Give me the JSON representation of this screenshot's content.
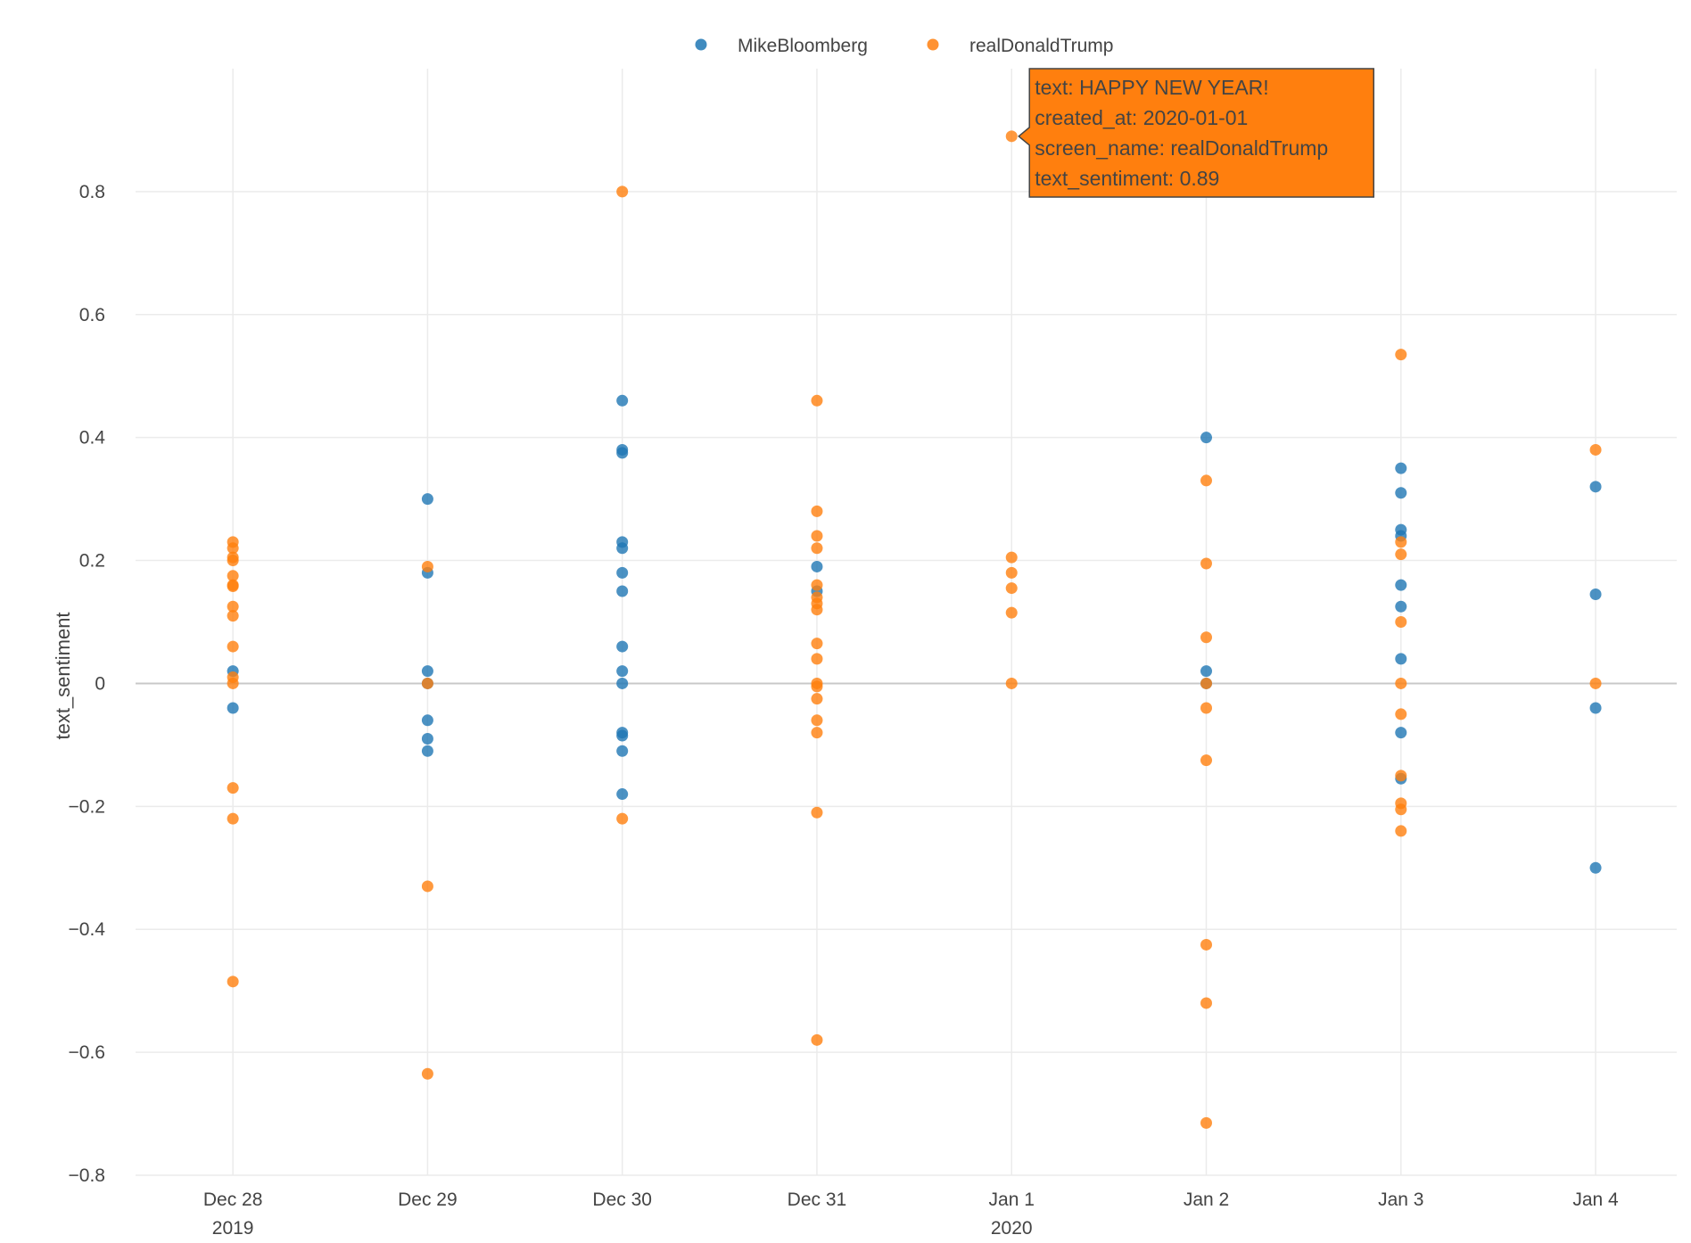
{
  "chart_data": {
    "type": "scatter",
    "ylabel": "text_sentiment",
    "xlabel": "",
    "ylim": [
      -0.8,
      1.0
    ],
    "xlim": [
      "2019-12-27T12:00",
      "2020-01-04T10:00"
    ],
    "y_ticks": [
      -0.8,
      -0.6,
      -0.4,
      -0.2,
      0,
      0.2,
      0.4,
      0.6,
      0.8
    ],
    "y_tick_labels": [
      "−0.8",
      "−0.6",
      "−0.4",
      "−0.2",
      "0",
      "0.2",
      "0.4",
      "0.6",
      "0.8"
    ],
    "x_ticks": [
      {
        "date": "2019-12-28",
        "label": "Dec 28",
        "year": "2019"
      },
      {
        "date": "2019-12-29",
        "label": "Dec 29",
        "year": ""
      },
      {
        "date": "2019-12-30",
        "label": "Dec 30",
        "year": ""
      },
      {
        "date": "2019-12-31",
        "label": "Dec 31",
        "year": ""
      },
      {
        "date": "2020-01-01",
        "label": "Jan 1",
        "year": "2020"
      },
      {
        "date": "2020-01-02",
        "label": "Jan 2",
        "year": ""
      },
      {
        "date": "2020-01-03",
        "label": "Jan 3",
        "year": ""
      },
      {
        "date": "2020-01-04",
        "label": "Jan 4",
        "year": ""
      }
    ],
    "grid": true,
    "legend_position": "top-center",
    "series": [
      {
        "name": "MikeBloomberg",
        "color": "#1f77b4",
        "points": [
          {
            "x": "2019-12-28",
            "y": 0.02
          },
          {
            "x": "2019-12-28",
            "y": -0.04
          },
          {
            "x": "2019-12-29",
            "y": 0.3
          },
          {
            "x": "2019-12-29",
            "y": 0.18
          },
          {
            "x": "2019-12-29",
            "y": 0.02
          },
          {
            "x": "2019-12-29",
            "y": 0.0
          },
          {
            "x": "2019-12-29",
            "y": -0.06
          },
          {
            "x": "2019-12-29",
            "y": -0.09
          },
          {
            "x": "2019-12-29",
            "y": -0.11
          },
          {
            "x": "2019-12-30",
            "y": 0.46
          },
          {
            "x": "2019-12-30",
            "y": 0.38
          },
          {
            "x": "2019-12-30",
            "y": 0.375
          },
          {
            "x": "2019-12-30",
            "y": 0.23
          },
          {
            "x": "2019-12-30",
            "y": 0.22
          },
          {
            "x": "2019-12-30",
            "y": 0.18
          },
          {
            "x": "2019-12-30",
            "y": 0.15
          },
          {
            "x": "2019-12-30",
            "y": 0.06
          },
          {
            "x": "2019-12-30",
            "y": 0.02
          },
          {
            "x": "2019-12-30",
            "y": 0.0
          },
          {
            "x": "2019-12-30",
            "y": -0.08
          },
          {
            "x": "2019-12-30",
            "y": -0.085
          },
          {
            "x": "2019-12-30",
            "y": -0.11
          },
          {
            "x": "2019-12-30",
            "y": -0.18
          },
          {
            "x": "2019-12-31",
            "y": 0.19
          },
          {
            "x": "2019-12-31",
            "y": 0.15
          },
          {
            "x": "2020-01-02",
            "y": 0.4
          },
          {
            "x": "2020-01-02",
            "y": 0.02
          },
          {
            "x": "2020-01-02",
            "y": 0.0
          },
          {
            "x": "2020-01-03",
            "y": 0.35
          },
          {
            "x": "2020-01-03",
            "y": 0.31
          },
          {
            "x": "2020-01-03",
            "y": 0.25
          },
          {
            "x": "2020-01-03",
            "y": 0.24
          },
          {
            "x": "2020-01-03",
            "y": 0.16
          },
          {
            "x": "2020-01-03",
            "y": 0.125
          },
          {
            "x": "2020-01-03",
            "y": 0.04
          },
          {
            "x": "2020-01-03",
            "y": -0.08
          },
          {
            "x": "2020-01-03",
            "y": -0.155
          },
          {
            "x": "2020-01-04",
            "y": 0.32
          },
          {
            "x": "2020-01-04",
            "y": 0.145
          },
          {
            "x": "2020-01-04",
            "y": -0.04
          },
          {
            "x": "2020-01-04",
            "y": -0.3
          }
        ]
      },
      {
        "name": "realDonaldTrump",
        "color": "#ff7f0e",
        "points": [
          {
            "x": "2019-12-28",
            "y": 0.23
          },
          {
            "x": "2019-12-28",
            "y": 0.22
          },
          {
            "x": "2019-12-28",
            "y": 0.205
          },
          {
            "x": "2019-12-28",
            "y": 0.2
          },
          {
            "x": "2019-12-28",
            "y": 0.175
          },
          {
            "x": "2019-12-28",
            "y": 0.16
          },
          {
            "x": "2019-12-28",
            "y": 0.158
          },
          {
            "x": "2019-12-28",
            "y": 0.125
          },
          {
            "x": "2019-12-28",
            "y": 0.11
          },
          {
            "x": "2019-12-28",
            "y": 0.06
          },
          {
            "x": "2019-12-28",
            "y": 0.01
          },
          {
            "x": "2019-12-28",
            "y": 0.0
          },
          {
            "x": "2019-12-28",
            "y": -0.17
          },
          {
            "x": "2019-12-28",
            "y": -0.22
          },
          {
            "x": "2019-12-28",
            "y": -0.485
          },
          {
            "x": "2019-12-29",
            "y": 0.19
          },
          {
            "x": "2019-12-29",
            "y": 0.0
          },
          {
            "x": "2019-12-29",
            "y": -0.33
          },
          {
            "x": "2019-12-29",
            "y": -0.635
          },
          {
            "x": "2019-12-30",
            "y": 0.8
          },
          {
            "x": "2019-12-30",
            "y": -0.22
          },
          {
            "x": "2019-12-31",
            "y": 0.46
          },
          {
            "x": "2019-12-31",
            "y": 0.28
          },
          {
            "x": "2019-12-31",
            "y": 0.24
          },
          {
            "x": "2019-12-31",
            "y": 0.22
          },
          {
            "x": "2019-12-31",
            "y": 0.16
          },
          {
            "x": "2019-12-31",
            "y": 0.14
          },
          {
            "x": "2019-12-31",
            "y": 0.13
          },
          {
            "x": "2019-12-31",
            "y": 0.12
          },
          {
            "x": "2019-12-31",
            "y": 0.065
          },
          {
            "x": "2019-12-31",
            "y": 0.04
          },
          {
            "x": "2019-12-31",
            "y": 0.0
          },
          {
            "x": "2019-12-31",
            "y": -0.005
          },
          {
            "x": "2019-12-31",
            "y": -0.025
          },
          {
            "x": "2019-12-31",
            "y": -0.06
          },
          {
            "x": "2019-12-31",
            "y": -0.08
          },
          {
            "x": "2019-12-31",
            "y": -0.21
          },
          {
            "x": "2019-12-31",
            "y": -0.58
          },
          {
            "x": "2020-01-01",
            "y": 0.89
          },
          {
            "x": "2020-01-01",
            "y": 0.205
          },
          {
            "x": "2020-01-01",
            "y": 0.18
          },
          {
            "x": "2020-01-01",
            "y": 0.155
          },
          {
            "x": "2020-01-01",
            "y": 0.115
          },
          {
            "x": "2020-01-01",
            "y": 0.0
          },
          {
            "x": "2020-01-02",
            "y": 0.33
          },
          {
            "x": "2020-01-02",
            "y": 0.195
          },
          {
            "x": "2020-01-02",
            "y": 0.075
          },
          {
            "x": "2020-01-02",
            "y": 0.0
          },
          {
            "x": "2020-01-02",
            "y": -0.04
          },
          {
            "x": "2020-01-02",
            "y": -0.125
          },
          {
            "x": "2020-01-02",
            "y": -0.425
          },
          {
            "x": "2020-01-02",
            "y": -0.52
          },
          {
            "x": "2020-01-02",
            "y": -0.715
          },
          {
            "x": "2020-01-03",
            "y": 0.535
          },
          {
            "x": "2020-01-03",
            "y": 0.23
          },
          {
            "x": "2020-01-03",
            "y": 0.21
          },
          {
            "x": "2020-01-03",
            "y": 0.1
          },
          {
            "x": "2020-01-03",
            "y": 0.0
          },
          {
            "x": "2020-01-03",
            "y": -0.05
          },
          {
            "x": "2020-01-03",
            "y": -0.15
          },
          {
            "x": "2020-01-03",
            "y": -0.195
          },
          {
            "x": "2020-01-03",
            "y": -0.205
          },
          {
            "x": "2020-01-03",
            "y": -0.24
          },
          {
            "x": "2020-01-04",
            "y": 0.38
          },
          {
            "x": "2020-01-04",
            "y": 0.0
          }
        ]
      }
    ],
    "tooltip": {
      "target": {
        "x": "2020-01-01",
        "y": 0.89
      },
      "lines": [
        "text: HAPPY NEW YEAR!",
        "created_at: 2020-01-01",
        "screen_name: realDonaldTrump",
        "text_sentiment: 0.89"
      ],
      "background": "#ff7f0e",
      "border": "#444444"
    }
  }
}
